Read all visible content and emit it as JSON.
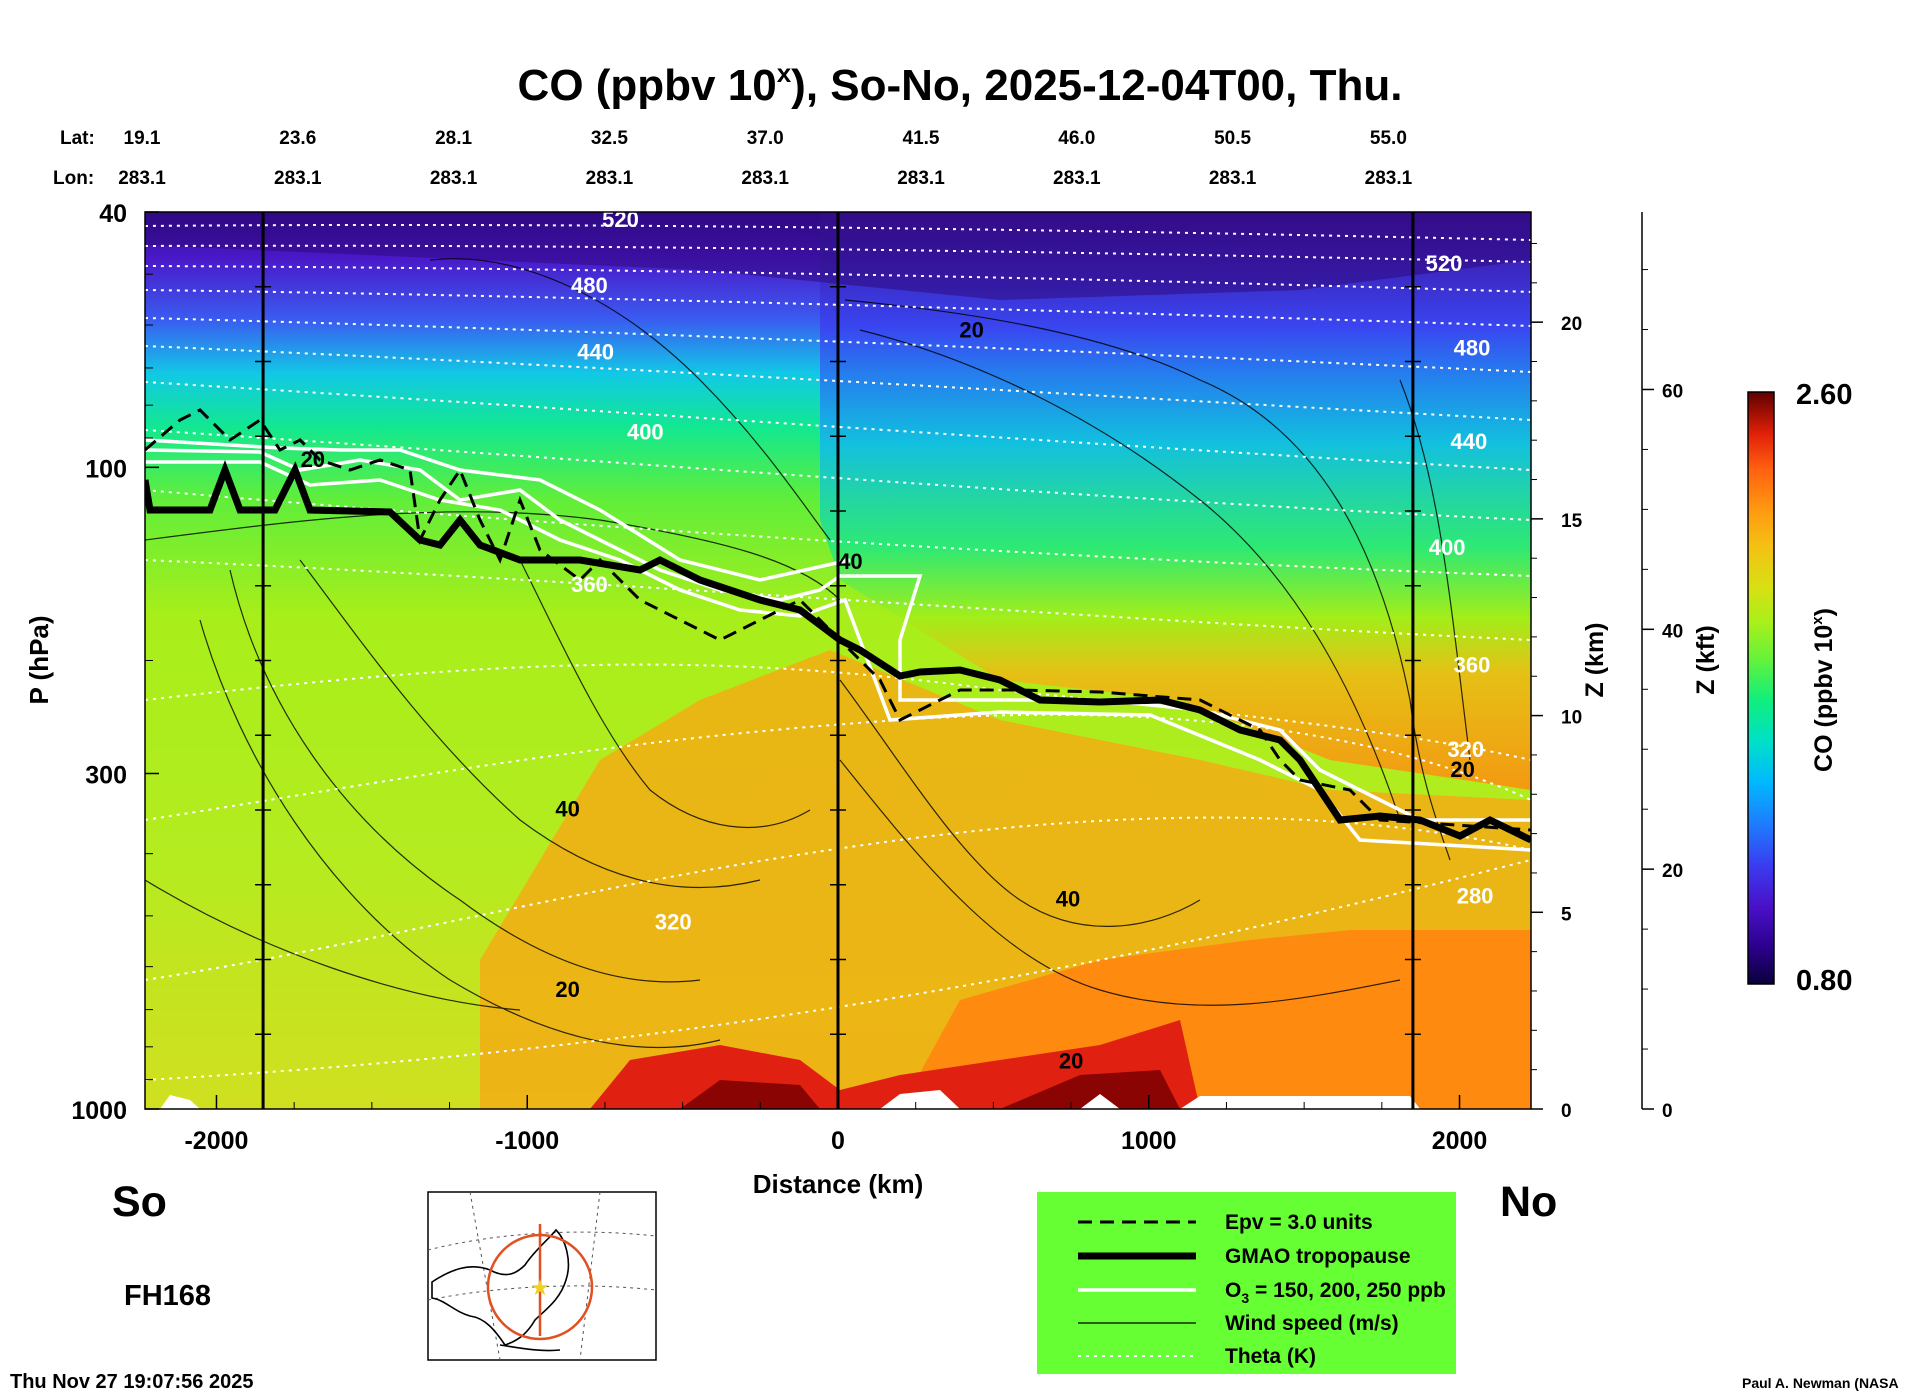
{
  "chart_data": {
    "type": "heatmap",
    "title": "CO (ppbv 10",
    "title_sup": "x",
    "title_tail": "), So-No, 2025-12-04T00, Thu.",
    "xlabel": "Distance (km)",
    "ylabel": "P (hPa)",
    "z_km_label": "Z (km)",
    "z_kft_label": "Z (kft)",
    "colorbar_label": "CO (ppbv 10",
    "colorbar_label_sup": "x",
    "colorbar_label_tail": ")",
    "colorbar_range": [
      0.8,
      2.6
    ],
    "colorbar_max_label": "2.60",
    "colorbar_min_label": "0.80",
    "xlim": [
      -2230,
      2230
    ],
    "ylim_hpa": [
      1000,
      40
    ],
    "x_ticks": [
      {
        "value": -2000,
        "label": "-2000"
      },
      {
        "value": -1000,
        "label": "-1000"
      },
      {
        "value": 0,
        "label": "0"
      },
      {
        "value": 1000,
        "label": "1000"
      },
      {
        "value": 2000,
        "label": "2000"
      }
    ],
    "p_ticks": [
      {
        "value": 40,
        "label": "40"
      },
      {
        "value": 100,
        "label": "100"
      },
      {
        "value": 300,
        "label": "300"
      },
      {
        "value": 1000,
        "label": "1000"
      }
    ],
    "z_km_ticks": [
      {
        "value": 0,
        "label": "0"
      },
      {
        "value": 5,
        "label": "5"
      },
      {
        "value": 10,
        "label": "10"
      },
      {
        "value": 15,
        "label": "15"
      },
      {
        "value": 20,
        "label": "20"
      }
    ],
    "z_kft_ticks": [
      {
        "value": 0,
        "label": "0"
      },
      {
        "value": 20,
        "label": "20"
      },
      {
        "value": 40,
        "label": "40"
      },
      {
        "value": 60,
        "label": "60"
      }
    ],
    "lat_label": "Lat:",
    "lon_label": "Lon:",
    "lat": [
      "19.1",
      "23.6",
      "28.1",
      "32.5",
      "37.0",
      "41.5",
      "46.0",
      "50.5",
      "55.0"
    ],
    "lon": [
      "283.1",
      "283.1",
      "283.1",
      "283.1",
      "283.1",
      "283.1",
      "283.1",
      "283.1",
      "283.1"
    ],
    "vertical_lines_km": [
      -1850,
      0,
      1850
    ],
    "theta_labels": [
      {
        "value": "520",
        "x": -700,
        "p": 41
      },
      {
        "value": "480",
        "x": -800,
        "p": 52
      },
      {
        "value": "440",
        "x": -780,
        "p": 66
      },
      {
        "value": "400",
        "x": -620,
        "p": 88
      },
      {
        "value": "360",
        "x": -800,
        "p": 152
      },
      {
        "value": "320",
        "x": -530,
        "p": 510
      },
      {
        "value": "520",
        "x": 1950,
        "p": 48
      },
      {
        "value": "480",
        "x": 2040,
        "p": 65
      },
      {
        "value": "440",
        "x": 2030,
        "p": 91
      },
      {
        "value": "400",
        "x": 1960,
        "p": 133
      },
      {
        "value": "360",
        "x": 2040,
        "p": 203
      },
      {
        "value": "320",
        "x": 2020,
        "p": 275
      },
      {
        "value": "280",
        "x": 2050,
        "p": 465
      }
    ],
    "wind_labels": [
      {
        "value": "20",
        "x": 430,
        "p": 61
      },
      {
        "value": "20",
        "x": -1690,
        "p": 97
      },
      {
        "value": "40",
        "x": 40,
        "p": 140
      },
      {
        "value": "40",
        "x": -870,
        "p": 340
      },
      {
        "value": "40",
        "x": 740,
        "p": 470
      },
      {
        "value": "20",
        "x": -870,
        "p": 650
      },
      {
        "value": "20",
        "x": 750,
        "p": 840
      },
      {
        "value": "20",
        "x": 2010,
        "p": 295
      }
    ],
    "co_field_description_bands": [
      {
        "p_range": [
          40,
          60
        ],
        "co": 0.9
      },
      {
        "p_range": [
          60,
          110
        ],
        "co": 1.3
      },
      {
        "p_range": [
          110,
          200
        ],
        "co": 1.6
      },
      {
        "p_range": [
          200,
          600
        ],
        "co": 1.75
      },
      {
        "p_range": [
          600,
          1000
        ],
        "co": 2.1
      }
    ]
  },
  "labels": {
    "south": "So",
    "north": "No",
    "forecast_hour": "FH168",
    "timestamp": "Thu Nov 27 19:07:56 2025",
    "credit": "Paul A. Newman (NASA"
  },
  "legend": {
    "items": [
      {
        "label": "Epv = 3.0 units",
        "style": "dashed-black"
      },
      {
        "label": "GMAO tropopause",
        "style": "thick-black"
      },
      {
        "label": "O",
        "sub": "3",
        "tail": " = 150, 200, 250 ppb",
        "style": "white"
      },
      {
        "label": "Wind speed (m/s)",
        "style": "thin-black"
      },
      {
        "label": "Theta (K)",
        "style": "dotted-white"
      }
    ],
    "background": "#66ff33"
  },
  "colors": {
    "colorbar": [
      "#0a003a",
      "#2a008a",
      "#4a10c8",
      "#3a3cf0",
      "#1e7cff",
      "#00b8ff",
      "#00e0c8",
      "#10ef7c",
      "#66f23a",
      "#a8f01a",
      "#d8e014",
      "#f5c014",
      "#ff9a10",
      "#ff6010",
      "#e02008",
      "#a00808",
      "#600000"
    ]
  }
}
